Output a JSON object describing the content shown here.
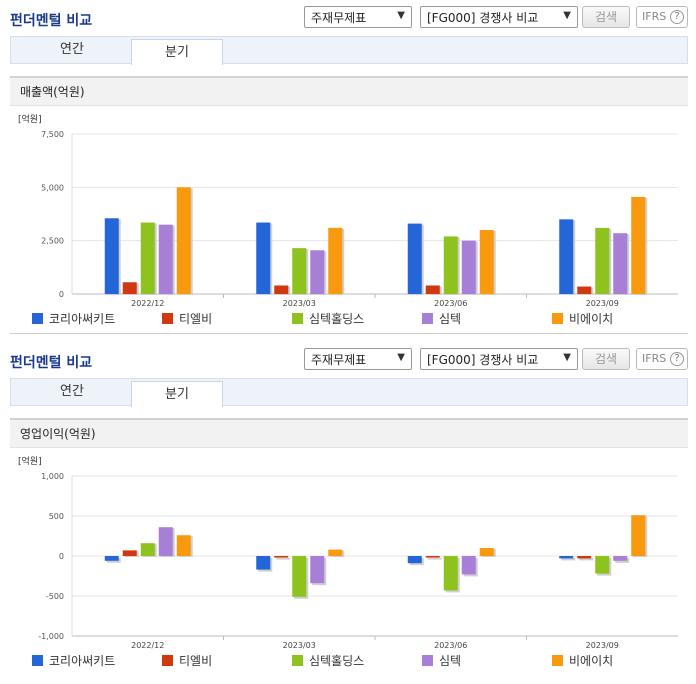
{
  "panels": [
    {
      "title": "펀더멘털 비교",
      "select1": "주재무제표",
      "select2": "[FG000] 경쟁사 비교",
      "search": "검색",
      "ifrs": "IFRS",
      "help": "?",
      "tabs": [
        "연간",
        "분기"
      ],
      "active_tab": 1,
      "section_title": "매출액(억원)"
    },
    {
      "title": "펀더멘털 비교",
      "select1": "주재무제표",
      "select2": "[FG000] 경쟁사 비교",
      "search": "검색",
      "ifrs": "IFRS",
      "help": "?",
      "tabs": [
        "연간",
        "분기"
      ],
      "active_tab": 1,
      "section_title": "영업이익(억원)"
    }
  ],
  "colors": [
    "#2466d8",
    "#d0390f",
    "#8dc21f",
    "#a77fd6",
    "#f99a0e"
  ],
  "chart_data": [
    {
      "type": "bar",
      "unit_label": "[억원]",
      "categories": [
        "2022/12",
        "2023/03",
        "2023/06",
        "2023/09"
      ],
      "ylim": [
        0,
        7500
      ],
      "yticks": [
        0,
        2500,
        5000,
        7500
      ],
      "ytick_labels": [
        "0",
        "2,500",
        "5,000",
        "7,500"
      ],
      "legend_position": "bottom",
      "series": [
        {
          "name": "코리아써키트",
          "values": [
            3550,
            3350,
            3300,
            3500
          ]
        },
        {
          "name": "티엘비",
          "values": [
            550,
            400,
            400,
            350
          ]
        },
        {
          "name": "심텍홀딩스",
          "values": [
            3350,
            2150,
            2700,
            3100
          ]
        },
        {
          "name": "심텍",
          "values": [
            3250,
            2050,
            2500,
            2850
          ]
        },
        {
          "name": "비에이치",
          "values": [
            5000,
            3100,
            3000,
            4550
          ]
        }
      ]
    },
    {
      "type": "bar",
      "unit_label": "[억원]",
      "categories": [
        "2022/12",
        "2023/03",
        "2023/06",
        "2023/09"
      ],
      "ylim": [
        -1000,
        1000
      ],
      "yticks": [
        -1000,
        -500,
        0,
        500,
        1000
      ],
      "ytick_labels": [
        "-1,000",
        "-500",
        "0",
        "500",
        "1,000"
      ],
      "legend_position": "bottom",
      "series": [
        {
          "name": "코리아써키트",
          "values": [
            -60,
            -170,
            -90,
            -30
          ]
        },
        {
          "name": "티엘비",
          "values": [
            70,
            -20,
            -20,
            -30
          ]
        },
        {
          "name": "심텍홀딩스",
          "values": [
            160,
            -510,
            -430,
            -220
          ]
        },
        {
          "name": "심텍",
          "values": [
            360,
            -340,
            -230,
            -60
          ]
        },
        {
          "name": "비에이치",
          "values": [
            260,
            80,
            100,
            510
          ]
        }
      ]
    }
  ]
}
